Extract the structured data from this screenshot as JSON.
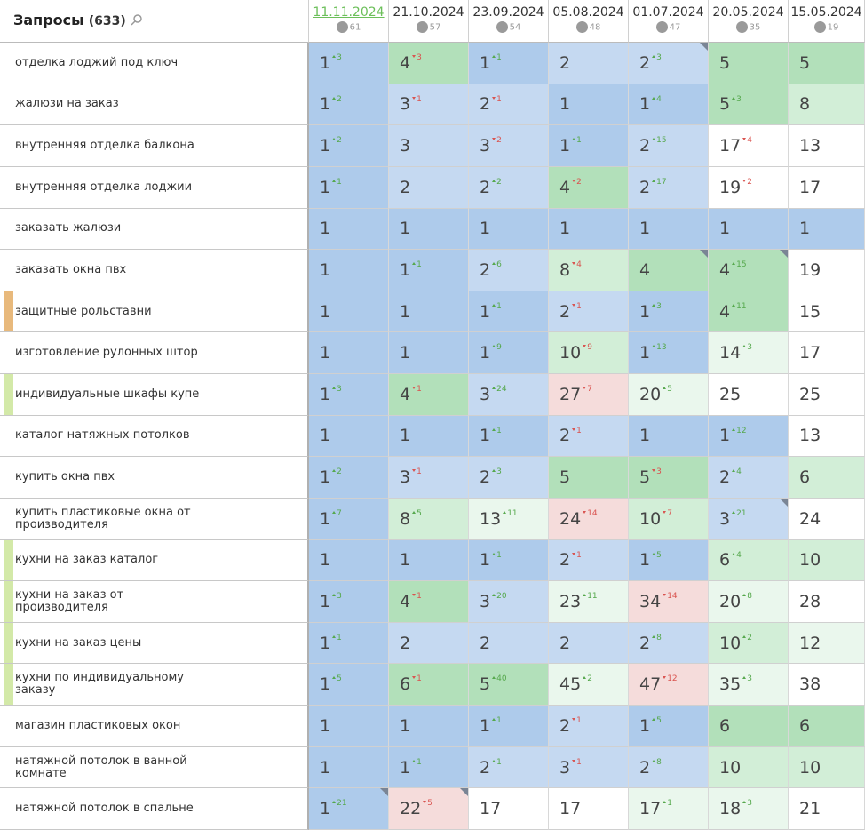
{
  "header": {
    "title": "Запросы",
    "count": "(633)",
    "dates": [
      {
        "date": "11.11.2024",
        "count": 61
      },
      {
        "date": "21.10.2024",
        "count": 57
      },
      {
        "date": "23.09.2024",
        "count": 54
      },
      {
        "date": "05.08.2024",
        "count": 48
      },
      {
        "date": "01.07.2024",
        "count": 47
      },
      {
        "date": "20.05.2024",
        "count": 35
      },
      {
        "date": "15.05.2024",
        "count": 19
      }
    ]
  },
  "colors": {
    "b": "#aecbeb",
    "lb": "#c5d9f1",
    "g": "#b2e0ba",
    "lg": "#d2eed7",
    "vlg": "#eaf7ed",
    "p": "#f5dcdb",
    "w": "#ffffff"
  },
  "rows": [
    {
      "query": "отделка лоджий под ключ",
      "cells": [
        {
          "v": 1,
          "d": 3,
          "t": "up",
          "c": "b"
        },
        {
          "v": 4,
          "d": 3,
          "t": "down",
          "c": "g"
        },
        {
          "v": 1,
          "d": 1,
          "t": "up",
          "c": "b"
        },
        {
          "v": 2,
          "c": "lb"
        },
        {
          "v": 2,
          "d": 3,
          "t": "up",
          "c": "lb",
          "corner": true
        },
        {
          "v": 5,
          "c": "g"
        },
        {
          "v": 5,
          "c": "g"
        }
      ]
    },
    {
      "query": "жалюзи на заказ",
      "cells": [
        {
          "v": 1,
          "d": 2,
          "t": "up",
          "c": "b"
        },
        {
          "v": 3,
          "d": 1,
          "t": "down",
          "c": "lb"
        },
        {
          "v": 2,
          "d": 1,
          "t": "down",
          "c": "lb"
        },
        {
          "v": 1,
          "c": "b"
        },
        {
          "v": 1,
          "d": 4,
          "t": "up",
          "c": "b"
        },
        {
          "v": 5,
          "d": 3,
          "t": "up",
          "c": "g"
        },
        {
          "v": 8,
          "c": "lg"
        }
      ]
    },
    {
      "query": "внутренняя отделка балкона",
      "cells": [
        {
          "v": 1,
          "d": 2,
          "t": "up",
          "c": "b"
        },
        {
          "v": 3,
          "c": "lb"
        },
        {
          "v": 3,
          "d": 2,
          "t": "down",
          "c": "lb"
        },
        {
          "v": 1,
          "d": 1,
          "t": "up",
          "c": "b"
        },
        {
          "v": 2,
          "d": 15,
          "t": "up",
          "c": "lb"
        },
        {
          "v": 17,
          "d": 4,
          "t": "down",
          "c": "w"
        },
        {
          "v": 13,
          "c": "w"
        }
      ]
    },
    {
      "query": "внутренняя отделка лоджии",
      "cells": [
        {
          "v": 1,
          "d": 1,
          "t": "up",
          "c": "b"
        },
        {
          "v": 2,
          "c": "lb"
        },
        {
          "v": 2,
          "d": 2,
          "t": "up",
          "c": "lb"
        },
        {
          "v": 4,
          "d": 2,
          "t": "down",
          "c": "g"
        },
        {
          "v": 2,
          "d": 17,
          "t": "up",
          "c": "lb"
        },
        {
          "v": 19,
          "d": 2,
          "t": "down",
          "c": "w"
        },
        {
          "v": 17,
          "c": "w"
        }
      ]
    },
    {
      "query": "заказать жалюзи",
      "cells": [
        {
          "v": 1,
          "c": "b"
        },
        {
          "v": 1,
          "c": "b"
        },
        {
          "v": 1,
          "c": "b"
        },
        {
          "v": 1,
          "c": "b"
        },
        {
          "v": 1,
          "c": "b"
        },
        {
          "v": 1,
          "c": "b"
        },
        {
          "v": 1,
          "c": "b"
        }
      ]
    },
    {
      "query": "заказать окна пвх",
      "cells": [
        {
          "v": 1,
          "c": "b"
        },
        {
          "v": 1,
          "d": 1,
          "t": "up",
          "c": "b"
        },
        {
          "v": 2,
          "d": 6,
          "t": "up",
          "c": "lb"
        },
        {
          "v": 8,
          "d": 4,
          "t": "down",
          "c": "lg"
        },
        {
          "v": 4,
          "c": "g",
          "corner": true
        },
        {
          "v": 4,
          "d": 15,
          "t": "up",
          "c": "g",
          "corner": true
        },
        {
          "v": 19,
          "c": "w"
        }
      ]
    },
    {
      "query": "защитные рольставни",
      "marker": "#e8b97c",
      "cells": [
        {
          "v": 1,
          "c": "b"
        },
        {
          "v": 1,
          "c": "b"
        },
        {
          "v": 1,
          "d": 1,
          "t": "up",
          "c": "b"
        },
        {
          "v": 2,
          "d": 1,
          "t": "down",
          "c": "lb"
        },
        {
          "v": 1,
          "d": 3,
          "t": "up",
          "c": "b"
        },
        {
          "v": 4,
          "d": 11,
          "t": "up",
          "c": "g"
        },
        {
          "v": 15,
          "c": "w"
        }
      ]
    },
    {
      "query": "изготовление рулонных штор",
      "cells": [
        {
          "v": 1,
          "c": "b"
        },
        {
          "v": 1,
          "c": "b"
        },
        {
          "v": 1,
          "d": 9,
          "t": "up",
          "c": "b"
        },
        {
          "v": 10,
          "d": 9,
          "t": "down",
          "c": "lg"
        },
        {
          "v": 1,
          "d": 13,
          "t": "up",
          "c": "b"
        },
        {
          "v": 14,
          "d": 3,
          "t": "up",
          "c": "vlg"
        },
        {
          "v": 17,
          "c": "w"
        }
      ]
    },
    {
      "query": "индивидуальные шкафы купе",
      "marker": "#d3e9a8",
      "cells": [
        {
          "v": 1,
          "d": 3,
          "t": "up",
          "c": "b"
        },
        {
          "v": 4,
          "d": 1,
          "t": "down",
          "c": "g"
        },
        {
          "v": 3,
          "d": 24,
          "t": "up",
          "c": "lb"
        },
        {
          "v": 27,
          "d": 7,
          "t": "down",
          "c": "p"
        },
        {
          "v": 20,
          "d": 5,
          "t": "up",
          "c": "vlg"
        },
        {
          "v": 25,
          "c": "w"
        },
        {
          "v": 25,
          "c": "w"
        }
      ]
    },
    {
      "query": "каталог натяжных потолков",
      "cells": [
        {
          "v": 1,
          "c": "b"
        },
        {
          "v": 1,
          "c": "b"
        },
        {
          "v": 1,
          "d": 1,
          "t": "up",
          "c": "b"
        },
        {
          "v": 2,
          "d": 1,
          "t": "down",
          "c": "lb"
        },
        {
          "v": 1,
          "c": "b"
        },
        {
          "v": 1,
          "d": 12,
          "t": "up",
          "c": "b"
        },
        {
          "v": 13,
          "c": "w"
        }
      ]
    },
    {
      "query": "купить окна пвх",
      "cells": [
        {
          "v": 1,
          "d": 2,
          "t": "up",
          "c": "b"
        },
        {
          "v": 3,
          "d": 1,
          "t": "down",
          "c": "lb"
        },
        {
          "v": 2,
          "d": 3,
          "t": "up",
          "c": "lb"
        },
        {
          "v": 5,
          "c": "g"
        },
        {
          "v": 5,
          "d": 3,
          "t": "down",
          "c": "g"
        },
        {
          "v": 2,
          "d": 4,
          "t": "up",
          "c": "lb"
        },
        {
          "v": 6,
          "c": "lg"
        }
      ]
    },
    {
      "query": "купить пластиковые окна от производителя",
      "cells": [
        {
          "v": 1,
          "d": 7,
          "t": "up",
          "c": "b"
        },
        {
          "v": 8,
          "d": 5,
          "t": "up",
          "c": "lg"
        },
        {
          "v": 13,
          "d": 11,
          "t": "up",
          "c": "vlg"
        },
        {
          "v": 24,
          "d": 14,
          "t": "down",
          "c": "p"
        },
        {
          "v": 10,
          "d": 7,
          "t": "down",
          "c": "lg"
        },
        {
          "v": 3,
          "d": 21,
          "t": "up",
          "c": "lb",
          "corner": true
        },
        {
          "v": 24,
          "c": "w"
        }
      ]
    },
    {
      "query": "кухни на заказ каталог",
      "marker": "#d3e9a8",
      "cells": [
        {
          "v": 1,
          "c": "b"
        },
        {
          "v": 1,
          "c": "b"
        },
        {
          "v": 1,
          "d": 1,
          "t": "up",
          "c": "b"
        },
        {
          "v": 2,
          "d": 1,
          "t": "down",
          "c": "lb"
        },
        {
          "v": 1,
          "d": 5,
          "t": "up",
          "c": "b"
        },
        {
          "v": 6,
          "d": 4,
          "t": "up",
          "c": "lg"
        },
        {
          "v": 10,
          "c": "lg"
        }
      ]
    },
    {
      "query": "кухни на заказ от производителя",
      "marker": "#d3e9a8",
      "cells": [
        {
          "v": 1,
          "d": 3,
          "t": "up",
          "c": "b"
        },
        {
          "v": 4,
          "d": 1,
          "t": "down",
          "c": "g"
        },
        {
          "v": 3,
          "d": 20,
          "t": "up",
          "c": "lb"
        },
        {
          "v": 23,
          "d": 11,
          "t": "up",
          "c": "vlg"
        },
        {
          "v": 34,
          "d": 14,
          "t": "down",
          "c": "p"
        },
        {
          "v": 20,
          "d": 8,
          "t": "up",
          "c": "vlg"
        },
        {
          "v": 28,
          "c": "w"
        }
      ]
    },
    {
      "query": "кухни на заказ цены",
      "marker": "#d3e9a8",
      "cells": [
        {
          "v": 1,
          "d": 1,
          "t": "up",
          "c": "b"
        },
        {
          "v": 2,
          "c": "lb"
        },
        {
          "v": 2,
          "c": "lb"
        },
        {
          "v": 2,
          "c": "lb"
        },
        {
          "v": 2,
          "d": 8,
          "t": "up",
          "c": "lb"
        },
        {
          "v": 10,
          "d": 2,
          "t": "up",
          "c": "lg"
        },
        {
          "v": 12,
          "c": "vlg"
        }
      ]
    },
    {
      "query": "кухни по индивидуальному заказу",
      "marker": "#d3e9a8",
      "cells": [
        {
          "v": 1,
          "d": 5,
          "t": "up",
          "c": "b"
        },
        {
          "v": 6,
          "d": 1,
          "t": "down",
          "c": "g"
        },
        {
          "v": 5,
          "d": 40,
          "t": "up",
          "c": "g"
        },
        {
          "v": 45,
          "d": 2,
          "t": "up",
          "c": "vlg"
        },
        {
          "v": 47,
          "d": 12,
          "t": "down",
          "c": "p"
        },
        {
          "v": 35,
          "d": 3,
          "t": "up",
          "c": "vlg"
        },
        {
          "v": 38,
          "c": "w"
        }
      ]
    },
    {
      "query": "магазин пластиковых окон",
      "cells": [
        {
          "v": 1,
          "c": "b"
        },
        {
          "v": 1,
          "c": "b"
        },
        {
          "v": 1,
          "d": 1,
          "t": "up",
          "c": "b"
        },
        {
          "v": 2,
          "d": 1,
          "t": "down",
          "c": "lb"
        },
        {
          "v": 1,
          "d": 5,
          "t": "up",
          "c": "b"
        },
        {
          "v": 6,
          "c": "g"
        },
        {
          "v": 6,
          "c": "g"
        }
      ]
    },
    {
      "query": "натяжной потолок в ванной комнате",
      "cells": [
        {
          "v": 1,
          "c": "b"
        },
        {
          "v": 1,
          "d": 1,
          "t": "up",
          "c": "b"
        },
        {
          "v": 2,
          "d": 1,
          "t": "up",
          "c": "lb"
        },
        {
          "v": 3,
          "d": 1,
          "t": "down",
          "c": "lb"
        },
        {
          "v": 2,
          "d": 8,
          "t": "up",
          "c": "lb"
        },
        {
          "v": 10,
          "c": "lg"
        },
        {
          "v": 10,
          "c": "lg"
        }
      ]
    },
    {
      "query": "натяжной потолок в спальне",
      "cells": [
        {
          "v": 1,
          "d": 21,
          "t": "up",
          "c": "b",
          "corner": true
        },
        {
          "v": 22,
          "d": 5,
          "t": "down",
          "c": "p",
          "corner": true
        },
        {
          "v": 17,
          "c": "w"
        },
        {
          "v": 17,
          "c": "w"
        },
        {
          "v": 17,
          "d": 1,
          "t": "up",
          "c": "vlg"
        },
        {
          "v": 18,
          "d": 3,
          "t": "up",
          "c": "vlg"
        },
        {
          "v": 21,
          "c": "w"
        }
      ]
    }
  ]
}
